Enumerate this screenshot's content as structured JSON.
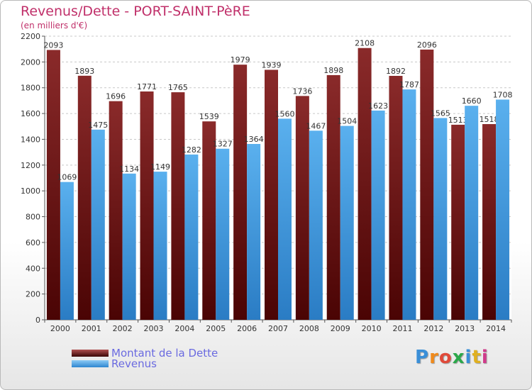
{
  "header": {
    "title": "Revenus/Dette - PORT-SAINT-PèRE",
    "subtitle": "(en milliers d'€)"
  },
  "legend": {
    "dette_label": "Montant de la Dette",
    "revenus_label": "Revenus"
  },
  "logo": {
    "text": "Proxiti",
    "letter_colors": [
      "#3a8fd8",
      "#f08a1c",
      "#e04a3a",
      "#2aa84a",
      "#3a8fd8",
      "#e0b020",
      "#d03a8a"
    ]
  },
  "colors": {
    "dette": "#7a1c1c",
    "revenus": "#4aa3e6",
    "title": "#c0306a",
    "legend_text": "#6a6ae0"
  },
  "chart_data": {
    "type": "bar",
    "title": "Revenus/Dette - PORT-SAINT-PèRE",
    "subtitle": "(en milliers d'€)",
    "categories": [
      "2000",
      "2001",
      "2002",
      "2003",
      "2004",
      "2005",
      "2006",
      "2007",
      "2008",
      "2009",
      "2010",
      "2011",
      "2012",
      "2013",
      "2014"
    ],
    "series": [
      {
        "name": "Montant de la Dette",
        "values": [
          2093,
          1893,
          1696,
          1771,
          1765,
          1539,
          1979,
          1939,
          1736,
          1898,
          2108,
          1892,
          2096,
          1513,
          1518
        ]
      },
      {
        "name": "Revenus",
        "values": [
          1069,
          1475,
          1134,
          1149,
          1282,
          1327,
          1364,
          1560,
          1467,
          1504,
          1623,
          1787,
          1565,
          1660,
          1708
        ]
      }
    ],
    "ylim": [
      0,
      2200
    ],
    "yticks": [
      0,
      200,
      400,
      600,
      800,
      1000,
      1200,
      1400,
      1600,
      1800,
      2000,
      2200
    ],
    "grid": true,
    "legend_position": "bottom-left"
  }
}
